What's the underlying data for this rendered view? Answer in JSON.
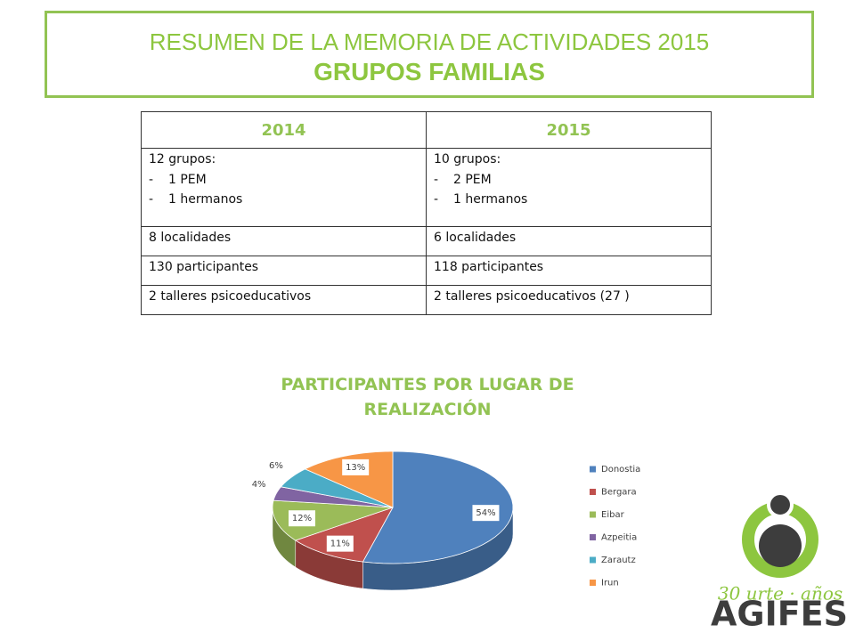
{
  "header": {
    "title": "RESUMEN DE LA MEMORIA DE ACTIVIDADES 2015",
    "subtitle": "GRUPOS FAMILIAS"
  },
  "table": {
    "header": [
      "2014",
      "2015"
    ],
    "rows": [
      [
        {
          "title": "12 grupos:",
          "items": [
            "1 PEM",
            "1 hermanos"
          ]
        },
        {
          "title": "10 grupos:",
          "items": [
            "2 PEM",
            "1 hermanos"
          ]
        }
      ],
      [
        "8 localidades",
        "6 localidades"
      ],
      [
        "130 participantes",
        "118 participantes"
      ],
      [
        "2 talleres psicoeducativos",
        "2 talleres psicoeducativos (27 )"
      ]
    ]
  },
  "chart_data": {
    "type": "pie",
    "title": "PARTICIPANTES POR LUGAR DE REALIZACIÓN",
    "categories": [
      "Donostia",
      "Bergara",
      "Eibar",
      "Azpeitia",
      "Zarautz",
      "Irun"
    ],
    "values": [
      54,
      11,
      12,
      4,
      6,
      13
    ],
    "value_labels": [
      "54%",
      "11%",
      "12%",
      "4%",
      "6%",
      "13%"
    ],
    "colors": [
      "#4f81bd",
      "#c0504d",
      "#9bbb59",
      "#8064a2",
      "#4bacc6",
      "#f79646"
    ],
    "legend": "right"
  },
  "logo": {
    "tagline": "30 urte · años",
    "name": "AGIFES"
  }
}
